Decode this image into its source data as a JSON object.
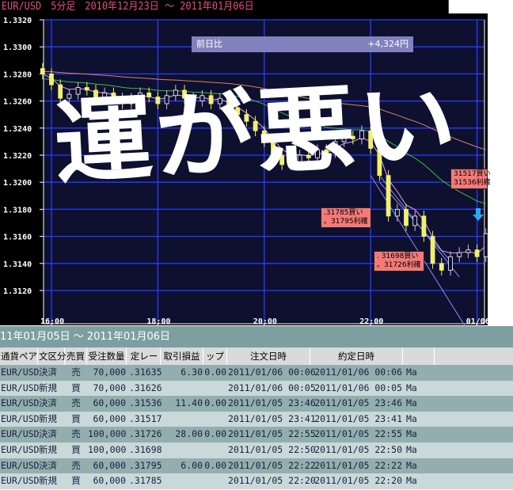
{
  "header": {
    "title": "EUR/USD　5分足　2010年12月23日 ～ 2011年01月06日"
  },
  "compare": {
    "label": "前日比",
    "value": "+4,324円"
  },
  "graffiti": "運が悪い",
  "callouts": [
    {
      "line1": ".31785買い",
      "line2": "。31795利確"
    },
    {
      "line1": ". 31698買い",
      "line2": "。31726利確"
    },
    {
      "line1": "31517買い",
      "line2": "31536利確"
    }
  ],
  "colors": {
    "background": "#0e1030",
    "grid": "#2a3cff",
    "bear": "#f0f070",
    "bull": "#ffffff",
    "ma_short": "#e79ee0",
    "ma_mid": "#3bbf3b",
    "ma_long": "#e0805a",
    "trendline": "#8c8ef0",
    "signal_arrow": "#29a9f0",
    "title_text": "#e0507f"
  },
  "chart_data": {
    "type": "candlestick",
    "ylim": [
      1.311,
      1.332
    ],
    "y_ticks": [
      "1.3320",
      "1.3300",
      "1.3280",
      "1.3260",
      "1.3240",
      "1.3220",
      "1.3200",
      "1.3180",
      "1.3160",
      "1.3140",
      "1.3120"
    ],
    "x_ticks": [
      "16:00",
      "18:00",
      "20:00",
      "22:00",
      "01/06"
    ],
    "times": [
      "15:50",
      "16:00",
      "16:10",
      "16:20",
      "16:30",
      "16:40",
      "16:50",
      "17:00",
      "17:10",
      "17:20",
      "17:30",
      "17:40",
      "17:50",
      "18:00",
      "18:10",
      "18:20",
      "18:30",
      "18:40",
      "18:50",
      "19:00",
      "19:10",
      "19:20",
      "19:30",
      "19:40",
      "19:50",
      "20:00",
      "20:10",
      "20:20",
      "20:30",
      "20:40",
      "20:50",
      "21:00",
      "21:10",
      "21:20",
      "21:30",
      "21:40",
      "21:50",
      "22:00",
      "22:10",
      "22:20",
      "22:30",
      "22:40",
      "22:50",
      "23:00",
      "23:10",
      "23:20",
      "23:30",
      "23:40",
      "23:50",
      "00:00",
      "00:10"
    ],
    "close": [
      1.328,
      1.3272,
      1.3262,
      1.3265,
      1.327,
      1.3268,
      1.3263,
      1.3266,
      1.3262,
      1.3258,
      1.3262,
      1.3266,
      1.3263,
      1.3258,
      1.3264,
      1.3268,
      1.3262,
      1.326,
      1.3264,
      1.3258,
      1.3262,
      1.3255,
      1.325,
      1.3245,
      1.3238,
      1.323,
      1.322,
      1.3213,
      1.3215,
      1.322,
      1.3218,
      1.3224,
      1.3222,
      1.323,
      1.3234,
      1.3232,
      1.3238,
      1.3225,
      1.3205,
      1.3175,
      1.318,
      1.3168,
      1.3175,
      1.316,
      1.314,
      1.3135,
      1.3145,
      1.3148,
      1.315,
      1.3145,
      1.3162
    ]
  },
  "table": {
    "title": "11年01月05日 ～ 2011年01月06日",
    "columns": [
      "通貨ペア",
      "文区分",
      "売買",
      "受注数量",
      "定レー",
      "取引損益",
      "ップ",
      "注文日時",
      "約定日時",
      ""
    ],
    "rows": [
      [
        "EUR/USD",
        "決済",
        "売",
        "70,000",
        ".31635",
        "6.30",
        "0.00",
        "2011/01/06 00:06",
        "2011/01/06 00:06",
        "Ma"
      ],
      [
        "EUR/USD",
        "新規",
        "買",
        "70,000",
        ".31626",
        "",
        "",
        "2011/01/06 00:05",
        "2011/01/06 00:05",
        "Ma"
      ],
      [
        "EUR/USD",
        "決済",
        "売",
        "60,000",
        ".31536",
        "11.40",
        "0.00",
        "2011/01/05 23:46",
        "2011/01/05 23:46",
        "Ma"
      ],
      [
        "EUR/USD",
        "新規",
        "買",
        "60,000",
        ".31517",
        "",
        "",
        "2011/01/05 23:41",
        "2011/01/05 23:41",
        "Ma"
      ],
      [
        "EUR/USD",
        "決済",
        "売",
        "100,000",
        ".31726",
        "28.00",
        "0.00",
        "2011/01/05 22:55",
        "2011/01/05 22:55",
        "Ma"
      ],
      [
        "EUR/USD",
        "新規",
        "買",
        "100,000",
        ".31698",
        "",
        "",
        "2011/01/05 22:50",
        "2011/01/05 22:50",
        "Ma"
      ],
      [
        "EUR/USD",
        "決済",
        "売",
        "60,000",
        ".31795",
        "6.00",
        "0.00",
        "2011/01/05 22:22",
        "2011/01/05 22:22",
        "Ma"
      ],
      [
        "EUR/USD",
        "新規",
        "買",
        "60,000",
        ".31785",
        "",
        "",
        "2011/01/05 22:20",
        "2011/01/05 22:20",
        "Ma"
      ]
    ]
  }
}
